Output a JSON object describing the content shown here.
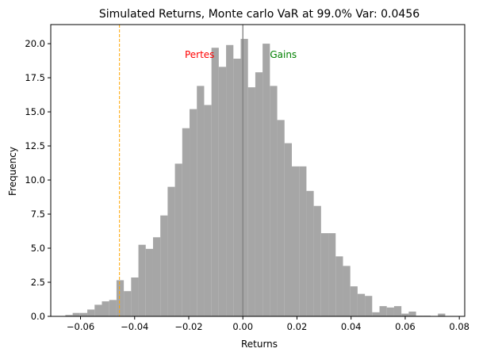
{
  "chart_data": {
    "type": "bar",
    "title": "Simulated Returns, Monte carlo VaR at 99.0% Var: 0.0456",
    "xlabel": "Returns",
    "ylabel": "Frequency",
    "xlim": [
      -0.071,
      0.082
    ],
    "ylim": [
      0,
      21.4
    ],
    "x_ticks": [
      -0.06,
      -0.04,
      -0.02,
      0.0,
      0.02,
      0.04,
      0.06,
      0.08
    ],
    "x_tick_labels": [
      "−0.06",
      "−0.04",
      "−0.02",
      "0.00",
      "0.02",
      "0.04",
      "0.06",
      "0.08"
    ],
    "y_ticks": [
      0,
      2.5,
      5,
      7.5,
      10,
      12.5,
      15,
      17.5,
      20
    ],
    "y_tick_labels": [
      "0.0",
      "2.5",
      "5.0",
      "7.5",
      "10.0",
      "12.5",
      "15.0",
      "17.5",
      "20.0"
    ],
    "grid": false,
    "bar_color": "#a6a6a6",
    "bins": [
      {
        "x0": -0.0656,
        "x1": -0.0629,
        "y": 0.1
      },
      {
        "x0": -0.0629,
        "x1": -0.0602,
        "y": 0.25
      },
      {
        "x0": -0.0602,
        "x1": -0.0575,
        "y": 0.25
      },
      {
        "x0": -0.0575,
        "x1": -0.0548,
        "y": 0.5
      },
      {
        "x0": -0.0548,
        "x1": -0.0521,
        "y": 0.85
      },
      {
        "x0": -0.0521,
        "x1": -0.0494,
        "y": 1.1
      },
      {
        "x0": -0.0494,
        "x1": -0.0467,
        "y": 1.2
      },
      {
        "x0": -0.0467,
        "x1": -0.044,
        "y": 2.65
      },
      {
        "x0": -0.044,
        "x1": -0.0413,
        "y": 1.85
      },
      {
        "x0": -0.0413,
        "x1": -0.0386,
        "y": 2.85
      },
      {
        "x0": -0.0386,
        "x1": -0.0359,
        "y": 5.25
      },
      {
        "x0": -0.0359,
        "x1": -0.0332,
        "y": 4.95
      },
      {
        "x0": -0.0332,
        "x1": -0.0305,
        "y": 5.8
      },
      {
        "x0": -0.0305,
        "x1": -0.0278,
        "y": 7.4
      },
      {
        "x0": -0.0278,
        "x1": -0.0251,
        "y": 9.5
      },
      {
        "x0": -0.0251,
        "x1": -0.0224,
        "y": 11.2
      },
      {
        "x0": -0.0224,
        "x1": -0.0197,
        "y": 13.8
      },
      {
        "x0": -0.0197,
        "x1": -0.017,
        "y": 15.2
      },
      {
        "x0": -0.017,
        "x1": -0.0143,
        "y": 16.9
      },
      {
        "x0": -0.0143,
        "x1": -0.0116,
        "y": 15.5
      },
      {
        "x0": -0.0116,
        "x1": -0.0089,
        "y": 19.7
      },
      {
        "x0": -0.0089,
        "x1": -0.0062,
        "y": 18.3
      },
      {
        "x0": -0.0062,
        "x1": -0.0035,
        "y": 19.9
      },
      {
        "x0": -0.0035,
        "x1": -0.0008,
        "y": 18.9
      },
      {
        "x0": -0.0008,
        "x1": 0.0019,
        "y": 20.35
      },
      {
        "x0": 0.0019,
        "x1": 0.0046,
        "y": 16.8
      },
      {
        "x0": 0.0046,
        "x1": 0.0073,
        "y": 17.9
      },
      {
        "x0": 0.0073,
        "x1": 0.01,
        "y": 20.0
      },
      {
        "x0": 0.01,
        "x1": 0.0127,
        "y": 16.9
      },
      {
        "x0": 0.0127,
        "x1": 0.0154,
        "y": 14.4
      },
      {
        "x0": 0.0154,
        "x1": 0.0181,
        "y": 12.7
      },
      {
        "x0": 0.0181,
        "x1": 0.0208,
        "y": 11.0
      },
      {
        "x0": 0.0208,
        "x1": 0.0235,
        "y": 11.0
      },
      {
        "x0": 0.0235,
        "x1": 0.0262,
        "y": 9.2
      },
      {
        "x0": 0.0262,
        "x1": 0.0289,
        "y": 8.1
      },
      {
        "x0": 0.0289,
        "x1": 0.0316,
        "y": 6.1
      },
      {
        "x0": 0.0316,
        "x1": 0.0343,
        "y": 6.1
      },
      {
        "x0": 0.0343,
        "x1": 0.037,
        "y": 4.4
      },
      {
        "x0": 0.037,
        "x1": 0.0397,
        "y": 3.7
      },
      {
        "x0": 0.0397,
        "x1": 0.0424,
        "y": 2.2
      },
      {
        "x0": 0.0424,
        "x1": 0.0451,
        "y": 1.65
      },
      {
        "x0": 0.0451,
        "x1": 0.0478,
        "y": 1.5
      },
      {
        "x0": 0.0478,
        "x1": 0.0505,
        "y": 0.3
      },
      {
        "x0": 0.0505,
        "x1": 0.0532,
        "y": 0.75
      },
      {
        "x0": 0.0532,
        "x1": 0.0559,
        "y": 0.65
      },
      {
        "x0": 0.0559,
        "x1": 0.0586,
        "y": 0.75
      },
      {
        "x0": 0.0586,
        "x1": 0.0613,
        "y": 0.2
      },
      {
        "x0": 0.0613,
        "x1": 0.064,
        "y": 0.35
      },
      {
        "x0": 0.064,
        "x1": 0.0667,
        "y": 0.05
      },
      {
        "x0": 0.0667,
        "x1": 0.0694,
        "y": 0.05
      },
      {
        "x0": 0.0721,
        "x1": 0.0748,
        "y": 0.2
      }
    ],
    "var_line": {
      "x": -0.0456,
      "color": "#ffa500",
      "style": "dashed"
    },
    "zero_line": {
      "x": 0.0,
      "color": "#808080"
    },
    "annotations": [
      {
        "text": "Pertes",
        "x": -0.0105,
        "y": 19.2,
        "anchor": "end",
        "color": "#ff0000"
      },
      {
        "text": "Gains",
        "x": 0.01,
        "y": 19.2,
        "anchor": "start",
        "color": "#008000"
      }
    ]
  }
}
